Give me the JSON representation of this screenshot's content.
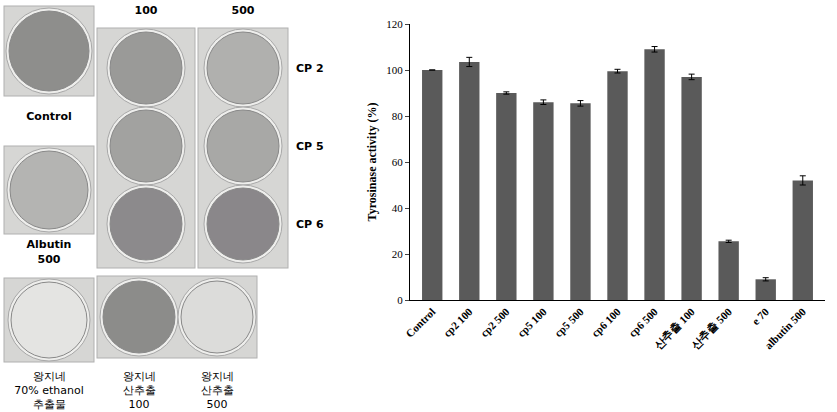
{
  "chart_data": {
    "type": "bar",
    "categories": [
      "Control",
      "cp2 100",
      "cp2 500",
      "cp5 100",
      "cp5 500",
      "cp6 100",
      "cp6 500",
      "산추출 100",
      "산추출 500",
      "e 70",
      "albutin 500"
    ],
    "values": [
      100,
      103.5,
      90,
      86,
      85.5,
      99.5,
      109,
      97,
      25.5,
      9,
      52
    ],
    "error": [
      0,
      2,
      0.5,
      1,
      1.2,
      0.8,
      1.2,
      1.2,
      0.5,
      0.7,
      2
    ],
    "color": "#5a5a5a",
    "ylabel": "Tyrosinase activity (%)",
    "ylim": [
      0,
      120
    ],
    "yticks": [
      0,
      20,
      40,
      60,
      80,
      100,
      120
    ],
    "grid": false
  },
  "photo_panel": {
    "column_headers": [
      "100",
      "500"
    ],
    "row_labels": [
      "CP 2",
      "CP 5",
      "CP 6"
    ],
    "control": [
      "Control"
    ],
    "albutin": [
      "Albutin",
      "500"
    ],
    "ethanol": [
      "왕지네",
      "70% ethanol",
      "추출물"
    ],
    "acid": [
      [
        "왕지네",
        "산추출",
        "100"
      ],
      [
        "왕지네",
        "산추출",
        "500"
      ]
    ]
  }
}
